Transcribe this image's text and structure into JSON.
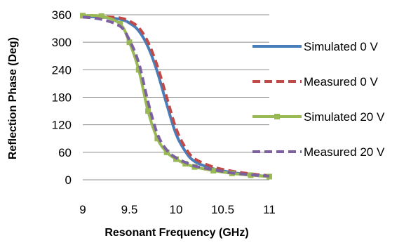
{
  "chart_data": {
    "type": "line",
    "title": "",
    "xlabel": "Resonant Frequency (GHz)",
    "ylabel": "Reflection Phase (Deg)",
    "xlim": [
      9,
      11
    ],
    "ylim": [
      0,
      360
    ],
    "xticks": [
      "9",
      "9.5",
      "10",
      "10.5",
      "11"
    ],
    "yticks": [
      "0",
      "60",
      "120",
      "180",
      "240",
      "300",
      "360"
    ],
    "grid": "horizontal",
    "legend": "right",
    "series": [
      {
        "name": "Simulated 0 V",
        "color": "#4a7ebb",
        "style": "solid",
        "marker": "none",
        "x": [
          9.0,
          9.2,
          9.4,
          9.5,
          9.6,
          9.7,
          9.8,
          9.9,
          10.0,
          10.1,
          10.2,
          10.4,
          10.6,
          10.8,
          11.0
        ],
        "y": [
          356,
          355,
          350,
          342,
          325,
          290,
          235,
          165,
          100,
          62,
          40,
          24,
          16,
          11,
          7
        ]
      },
      {
        "name": "Measured 0 V",
        "color": "#be4b48",
        "style": "dashed",
        "marker": "none",
        "x": [
          9.0,
          9.2,
          9.4,
          9.5,
          9.6,
          9.7,
          9.8,
          9.9,
          10.0,
          10.1,
          10.2,
          10.4,
          10.6,
          10.8,
          11.0
        ],
        "y": [
          357,
          356,
          353,
          346,
          332,
          300,
          248,
          180,
          112,
          70,
          46,
          28,
          19,
          13,
          9
        ]
      },
      {
        "name": "Simulated 20 V",
        "color": "#98b954",
        "style": "solid",
        "marker": "square",
        "x": [
          9.0,
          9.2,
          9.4,
          9.5,
          9.6,
          9.7,
          9.8,
          9.9,
          10.0,
          10.1,
          10.2,
          10.4,
          10.6,
          10.8,
          11.0
        ],
        "y": [
          358,
          357,
          340,
          300,
          240,
          150,
          90,
          60,
          45,
          35,
          28,
          20,
          14,
          10,
          7
        ]
      },
      {
        "name": "Measured 20 V",
        "color": "#7d60a0",
        "style": "dashed",
        "marker": "none",
        "x": [
          9.0,
          9.2,
          9.4,
          9.5,
          9.6,
          9.7,
          9.8,
          9.9,
          10.0,
          10.1,
          10.2,
          10.4,
          10.6,
          10.8,
          11.0
        ],
        "y": [
          355,
          350,
          335,
          305,
          255,
          170,
          100,
          65,
          48,
          38,
          30,
          22,
          15,
          11,
          8
        ]
      }
    ]
  }
}
